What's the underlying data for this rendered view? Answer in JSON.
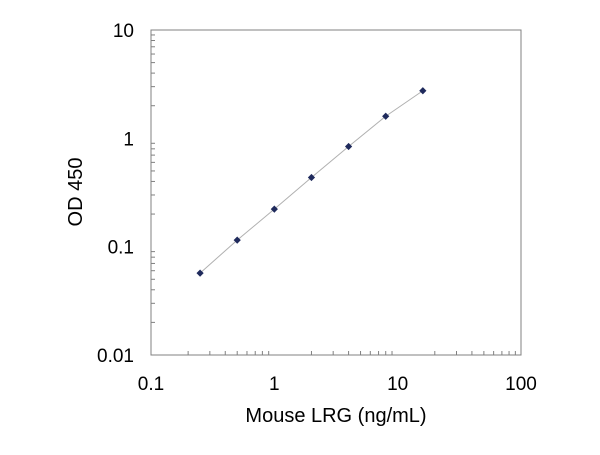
{
  "chart_data": {
    "type": "scatter",
    "title": "",
    "xlabel": "Mouse LRG  (ng/mL)",
    "ylabel": "OD 450",
    "x_scale": "log",
    "y_scale": "log",
    "xlim": [
      0.1,
      100
    ],
    "ylim": [
      0.01,
      10
    ],
    "x_ticks": [
      "0.1",
      "1",
      "10",
      "100"
    ],
    "y_ticks": [
      "0.01",
      "0.1",
      "1",
      "10"
    ],
    "grid": false,
    "legend": "none",
    "series": [
      {
        "x": [
          0.25,
          0.5,
          1,
          2,
          4,
          8,
          16
        ],
        "y": [
          0.057,
          0.115,
          0.222,
          0.435,
          0.84,
          1.6,
          2.75
        ]
      }
    ],
    "colors": {
      "marker": "#1f2a5c",
      "fit_line": "#b0b0b0",
      "axis": "#808080"
    }
  }
}
